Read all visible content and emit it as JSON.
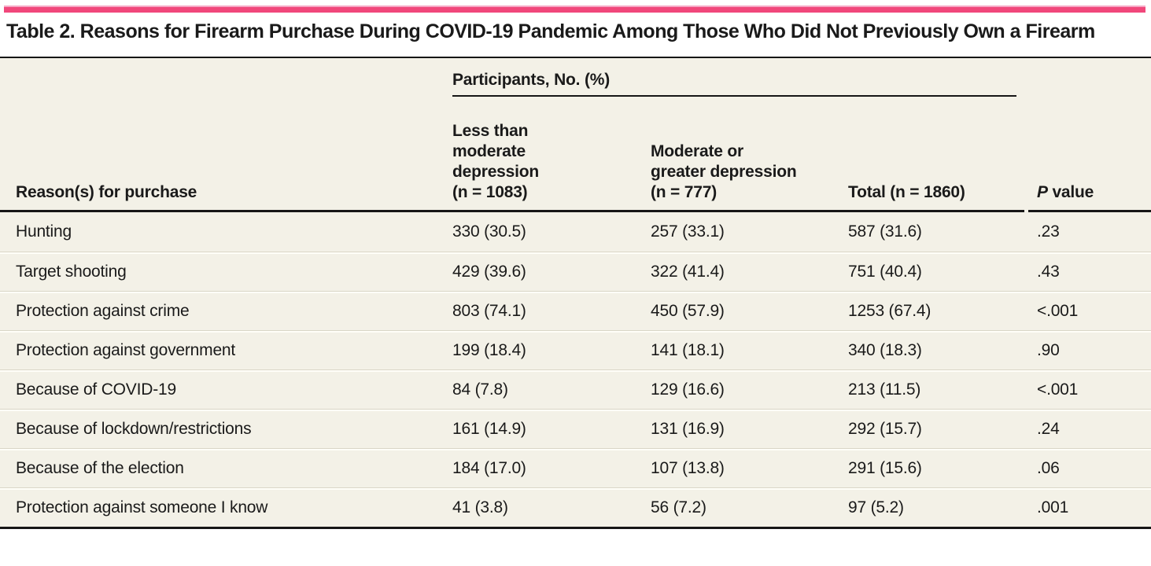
{
  "page": {
    "title": "Table 2. Reasons for Firearm Purchase During COVID-19 Pandemic Among Those Who Did Not Previously Own a Firearm"
  },
  "colors": {
    "brand_bar": "#f1477b",
    "brand_bar_top": "#f6a8c5",
    "table_bg": "#f3f1e7",
    "rule": "#161616",
    "divider_gray": "#d9d6c7",
    "divider_white": "#fffef8",
    "text": "#1a1a1a"
  },
  "table": {
    "group_header": "Participants, No. (%)",
    "reason_header": "Reason(s) for purchase",
    "col_less_than_moderate": "Less than\nmoderate\ndepression\n(n = 1083)",
    "col_moderate_or_greater": "Moderate or\ngreater depression\n(n = 777)",
    "col_total": "Total (n = 1860)",
    "p_header": {
      "italic": "P",
      "rest": " value"
    },
    "rows": [
      {
        "reason": "Hunting",
        "less_than_moderate": "330 (30.5)",
        "moderate_or_greater": "257 (33.1)",
        "total": "587 (31.6)",
        "p_value": ".23"
      },
      {
        "reason": "Target shooting",
        "less_than_moderate": "429 (39.6)",
        "moderate_or_greater": "322 (41.4)",
        "total": "751 (40.4)",
        "p_value": ".43"
      },
      {
        "reason": "Protection against crime",
        "less_than_moderate": "803 (74.1)",
        "moderate_or_greater": "450 (57.9)",
        "total": "1253 (67.4)",
        "p_value": "<.001"
      },
      {
        "reason": "Protection against government",
        "less_than_moderate": "199 (18.4)",
        "moderate_or_greater": "141 (18.1)",
        "total": "340 (18.3)",
        "p_value": ".90"
      },
      {
        "reason": "Because of COVID-19",
        "less_than_moderate": "84 (7.8)",
        "moderate_or_greater": "129 (16.6)",
        "total": "213 (11.5)",
        "p_value": "<.001"
      },
      {
        "reason": "Because of lockdown/restrictions",
        "less_than_moderate": "161 (14.9)",
        "moderate_or_greater": "131 (16.9)",
        "total": "292 (15.7)",
        "p_value": ".24"
      },
      {
        "reason": "Because of the election",
        "less_than_moderate": "184 (17.0)",
        "moderate_or_greater": "107 (13.8)",
        "total": "291 (15.6)",
        "p_value": ".06"
      },
      {
        "reason": "Protection against someone I know",
        "less_than_moderate": "41 (3.8)",
        "moderate_or_greater": "56 (7.2)",
        "total": "97 (5.2)",
        "p_value": ".001"
      }
    ]
  }
}
